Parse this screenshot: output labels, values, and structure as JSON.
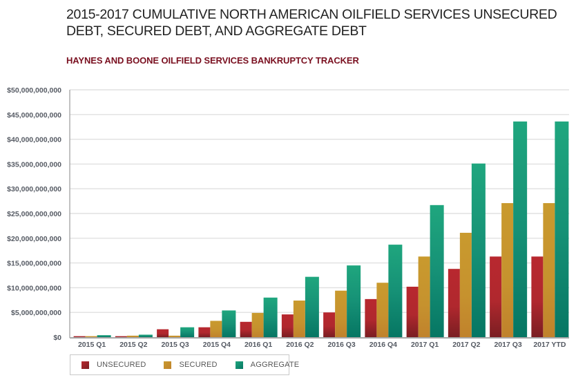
{
  "header": {
    "title": "2015-2017 CUMULATIVE NORTH AMERICAN OILFIELD SERVICES UNSECURED DEBT, SECURED DEBT, AND AGGREGATE DEBT",
    "subtitle": "HAYNES AND BOONE OILFIELD SERVICES BANKRUPTCY TRACKER"
  },
  "colors": {
    "unsecured_top": "#b8282f",
    "unsecured_bottom": "#7a1e22",
    "secured_top": "#c99a2e",
    "secured_bottom": "#c0822c",
    "aggregate_top": "#1fa67e",
    "aggregate_bottom": "#067663",
    "subtitle": "#7a1020"
  },
  "chart_data": {
    "type": "bar",
    "title": "2015-2017 CUMULATIVE NORTH AMERICAN OILFIELD SERVICES UNSECURED DEBT, SECURED DEBT, AND AGGREGATE DEBT",
    "subtitle": "HAYNES AND BOONE OILFIELD SERVICES BANKRUPTCY TRACKER",
    "xlabel": "",
    "ylabel": "",
    "ylim": [
      0,
      50000000000
    ],
    "yticks": [
      0,
      5000000000,
      10000000000,
      15000000000,
      20000000000,
      25000000000,
      30000000000,
      35000000000,
      40000000000,
      45000000000,
      50000000000
    ],
    "ytick_labels": [
      "$0",
      "$5,000,000,000",
      "$10,000,000,000",
      "$15,000,000,000",
      "$20,000,000,000",
      "$25,000,000,000",
      "$30,000,000,000",
      "$35,000,000,000",
      "$40,000,000,000",
      "$45,000,000,000",
      "$50,000,000,000"
    ],
    "grid": true,
    "legend_position": "bottom-left",
    "categories": [
      "2015 Q1",
      "2015 Q2",
      "2015 Q3",
      "2015 Q4",
      "2016 Q1",
      "2016 Q2",
      "2016 Q3",
      "2016 Q4",
      "2017 Q1",
      "2017 Q2",
      "2017 Q3",
      "2017 YTD"
    ],
    "series": [
      {
        "name": "UNSECURED",
        "key": "unsecured",
        "values": [
          200000000,
          200000000,
          1600000000,
          2000000000,
          3100000000,
          4600000000,
          5000000000,
          7700000000,
          10200000000,
          13800000000,
          16300000000,
          16300000000
        ]
      },
      {
        "name": "SECURED",
        "key": "secured",
        "values": [
          200000000,
          300000000,
          300000000,
          3300000000,
          4900000000,
          7400000000,
          9400000000,
          11000000000,
          16300000000,
          21100000000,
          27100000000,
          27100000000
        ]
      },
      {
        "name": "AGGREGATE",
        "key": "aggregate",
        "values": [
          400000000,
          500000000,
          2000000000,
          5400000000,
          8000000000,
          12200000000,
          14500000000,
          18700000000,
          26700000000,
          35100000000,
          43600000000,
          43600000000
        ]
      }
    ]
  }
}
